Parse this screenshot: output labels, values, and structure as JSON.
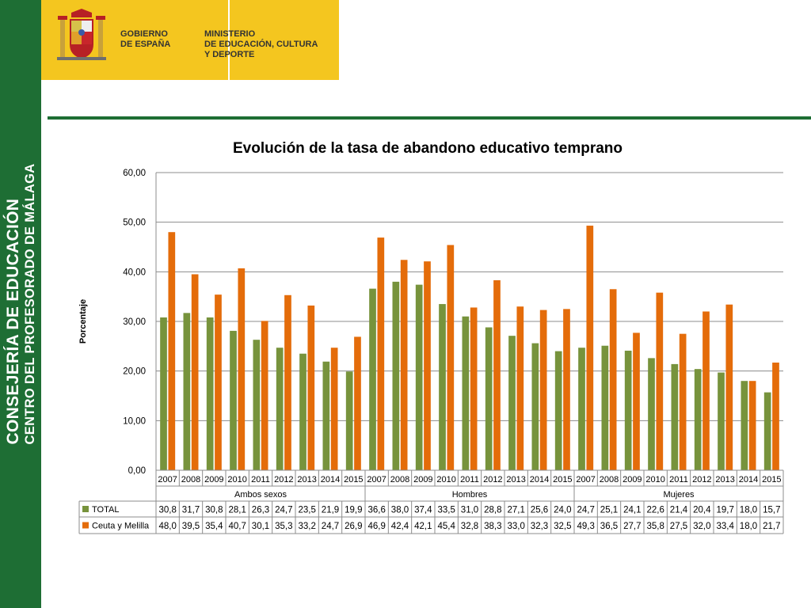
{
  "branding": {
    "side_line1": "CONSEJERÍA DE EDUCACIÓN",
    "side_line2": "CENTRO DEL PROFESORADO DE MÁLAGA",
    "gov_label": "GOBIERNO\nDE ESPAÑA",
    "ministry_label": "MINISTERIO\nDE EDUCACIÓN, CULTURA\nY DEPORTE",
    "colors": {
      "green": "#1e6e34",
      "yellow": "#f4c61f"
    }
  },
  "chart_data": {
    "type": "bar",
    "title": "Evolución de la tasa de abandono educativo temprano",
    "ylabel": "Porcentaje",
    "ylim": [
      0,
      60
    ],
    "yticks": [
      "0,00",
      "10,00",
      "20,00",
      "30,00",
      "40,00",
      "50,00",
      "60,00"
    ],
    "grid": true,
    "legend": "table-below",
    "groups": [
      "Ambos sexos",
      "Hombres",
      "Mujeres"
    ],
    "years": [
      "2007",
      "2008",
      "2009",
      "2010",
      "2011",
      "2012",
      "2013",
      "2014",
      "2015"
    ],
    "series": [
      {
        "name": "TOTAL",
        "color": "#77933c",
        "values": [
          30.8,
          31.7,
          30.8,
          28.1,
          26.3,
          24.7,
          23.5,
          21.9,
          19.9,
          36.6,
          38.0,
          37.4,
          33.5,
          31.0,
          28.8,
          27.1,
          25.6,
          24.0,
          24.7,
          25.1,
          24.1,
          22.6,
          21.4,
          20.4,
          19.7,
          18.0,
          15.7
        ],
        "labels": [
          "30,8",
          "31,7",
          "30,8",
          "28,1",
          "26,3",
          "24,7",
          "23,5",
          "21,9",
          "19,9",
          "36,6",
          "38,0",
          "37,4",
          "33,5",
          "31,0",
          "28,8",
          "27,1",
          "25,6",
          "24,0",
          "24,7",
          "25,1",
          "24,1",
          "22,6",
          "21,4",
          "20,4",
          "19,7",
          "18,0",
          "15,7"
        ]
      },
      {
        "name": "Ceuta y Melilla",
        "color": "#e46c0a",
        "values": [
          48.0,
          39.5,
          35.4,
          40.7,
          30.1,
          35.3,
          33.2,
          24.7,
          26.9,
          46.9,
          42.4,
          42.1,
          45.4,
          32.8,
          38.3,
          33.0,
          32.3,
          32.5,
          49.3,
          36.5,
          27.7,
          35.8,
          27.5,
          32.0,
          33.4,
          18.0,
          21.7
        ],
        "labels": [
          "48,0",
          "39,5",
          "35,4",
          "40,7",
          "30,1",
          "35,3",
          "33,2",
          "24,7",
          "26,9",
          "46,9",
          "42,4",
          "42,1",
          "45,4",
          "32,8",
          "38,3",
          "33,0",
          "32,3",
          "32,5",
          "49,3",
          "36,5",
          "27,7",
          "35,8",
          "27,5",
          "32,0",
          "33,4",
          "18,0",
          "21,7"
        ]
      }
    ]
  }
}
